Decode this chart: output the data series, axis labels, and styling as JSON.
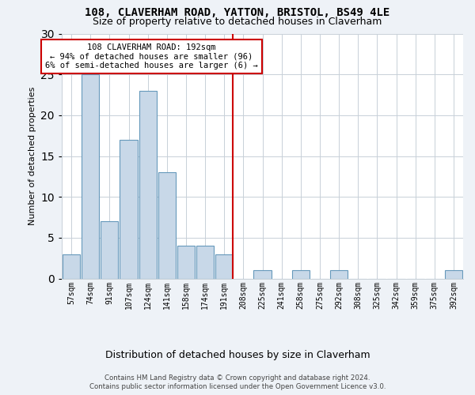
{
  "title": "108, CLAVERHAM ROAD, YATTON, BRISTOL, BS49 4LE",
  "subtitle": "Size of property relative to detached houses in Claverham",
  "xlabel": "Distribution of detached houses by size in Claverham",
  "ylabel": "Number of detached properties",
  "bar_labels": [
    "57sqm",
    "74sqm",
    "91sqm",
    "107sqm",
    "124sqm",
    "141sqm",
    "158sqm",
    "174sqm",
    "191sqm",
    "208sqm",
    "225sqm",
    "241sqm",
    "258sqm",
    "275sqm",
    "292sqm",
    "308sqm",
    "325sqm",
    "342sqm",
    "359sqm",
    "375sqm",
    "392sqm"
  ],
  "bar_values": [
    3,
    25,
    7,
    17,
    23,
    13,
    4,
    4,
    3,
    0,
    1,
    0,
    1,
    0,
    1,
    0,
    0,
    0,
    0,
    0,
    1
  ],
  "bar_color": "#c8d8e8",
  "bar_edge_color": "#6699bb",
  "vline_index": 8,
  "vline_color": "#cc0000",
  "annotation_line1": "108 CLAVERHAM ROAD: 192sqm",
  "annotation_line2": "← 94% of detached houses are smaller (96)",
  "annotation_line3": "6% of semi-detached houses are larger (6) →",
  "annotation_box_color": "#ffffff",
  "annotation_box_edge": "#cc0000",
  "ylim": [
    0,
    30
  ],
  "yticks": [
    0,
    5,
    10,
    15,
    20,
    25,
    30
  ],
  "footer_line1": "Contains HM Land Registry data © Crown copyright and database right 2024.",
  "footer_line2": "Contains public sector information licensed under the Open Government Licence v3.0.",
  "bg_color": "#eef2f7",
  "plot_bg_color": "#ffffff",
  "grid_color": "#c8d0d8"
}
